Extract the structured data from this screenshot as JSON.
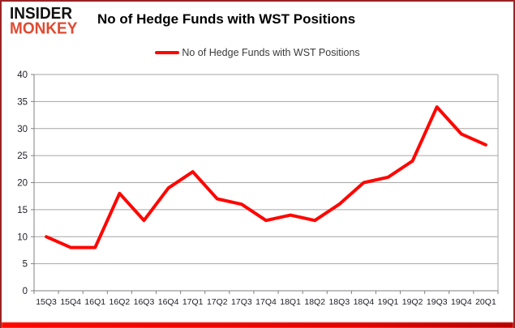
{
  "header": {
    "logo_line1": "INSIDER",
    "logo_line2": "MONKEY",
    "title": "No of Hedge Funds with WST Positions"
  },
  "legend": {
    "label": "No of Hedge Funds with WST Positions"
  },
  "colors": {
    "line": "#fe0602",
    "logo_red": "#de4b32",
    "grid": "#a6a6a6",
    "axis": "#808080",
    "tick": "#808080",
    "label": "#20202a",
    "frame": "#9b2424"
  },
  "chart_data": {
    "type": "line",
    "title": "No of Hedge Funds with WST Positions",
    "xlabel": "",
    "ylabel": "",
    "categories": [
      "15Q3",
      "15Q4",
      "16Q1",
      "16Q2",
      "16Q3",
      "16Q4",
      "17Q1",
      "17Q2",
      "17Q3",
      "17Q4",
      "18Q1",
      "18Q2",
      "18Q3",
      "18Q4",
      "19Q1",
      "19Q2",
      "19Q3",
      "19Q4",
      "20Q1"
    ],
    "values": [
      10,
      8,
      8,
      18,
      13,
      19,
      22,
      17,
      16,
      13,
      14,
      13,
      16,
      20,
      21,
      24,
      34,
      29,
      27
    ],
    "series_name": "No of Hedge Funds with WST Positions",
    "ylim": [
      0,
      40
    ],
    "yticks": [
      0,
      5,
      10,
      15,
      20,
      25,
      30,
      35,
      40
    ],
    "grid": true,
    "legend_position": "top-center"
  }
}
